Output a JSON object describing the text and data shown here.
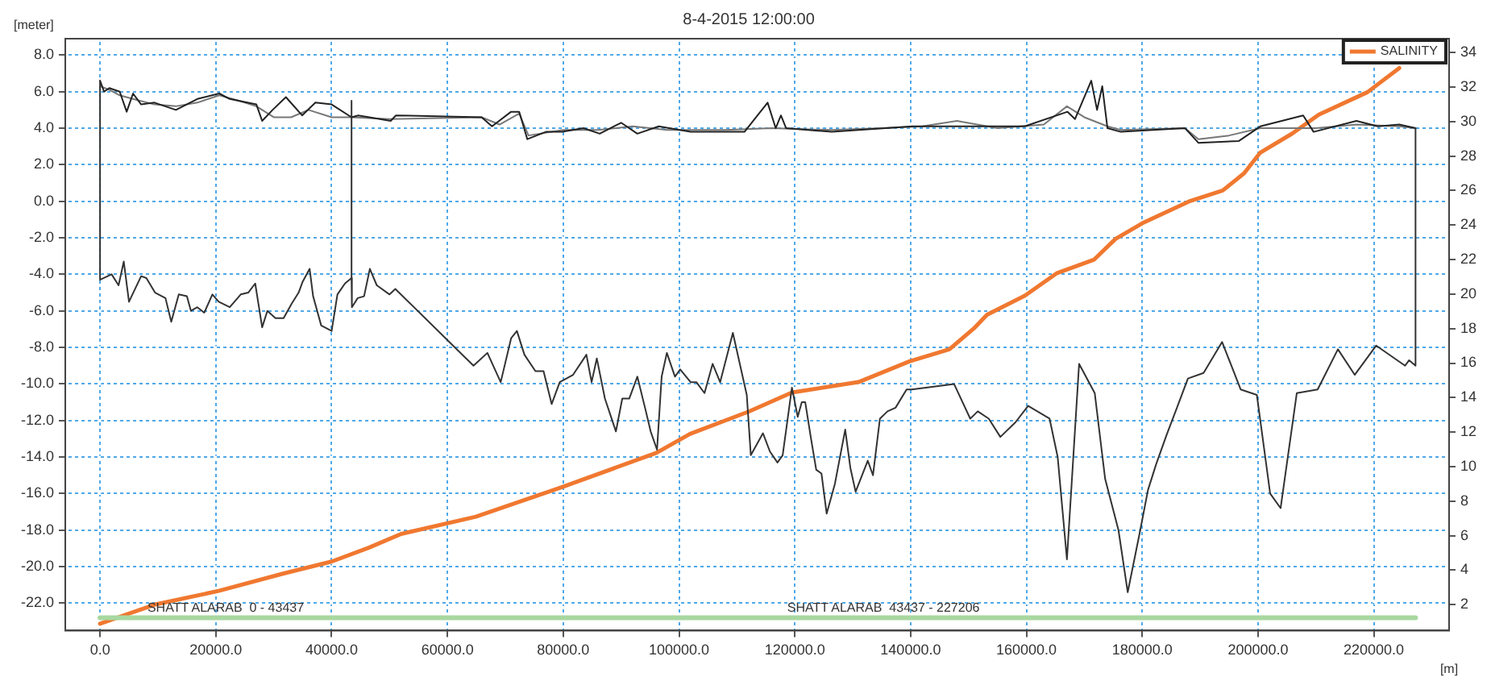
{
  "chart_data": {
    "type": "line",
    "title": "8-4-2015 12:00:00",
    "ylabel": "[meter]",
    "xlabel": "[m]",
    "xlim": [
      -6000,
      233000
    ],
    "xticks": [
      {
        "value": 0,
        "label": "0.0"
      },
      {
        "value": 20000,
        "label": "20000.0"
      },
      {
        "value": 40000,
        "label": "40000.0"
      },
      {
        "value": 60000,
        "label": "60000.0"
      },
      {
        "value": 80000,
        "label": "80000.0"
      },
      {
        "value": 100000,
        "label": "100000.0"
      },
      {
        "value": 120000,
        "label": "120000.0"
      },
      {
        "value": 140000,
        "label": "140000.0"
      },
      {
        "value": 160000,
        "label": "160000.0"
      },
      {
        "value": 180000,
        "label": "180000.0"
      },
      {
        "value": 200000,
        "label": "200000.0"
      },
      {
        "value": 220000,
        "label": "220000.0"
      }
    ],
    "ylim": [
      -23.5,
      8.9
    ],
    "yticks": [
      {
        "value": -22,
        "label": "-22.0"
      },
      {
        "value": -20,
        "label": "-20.0"
      },
      {
        "value": -18,
        "label": "-18.0"
      },
      {
        "value": -16,
        "label": "-16.0"
      },
      {
        "value": -14,
        "label": "-14.0"
      },
      {
        "value": -12,
        "label": "-12.0"
      },
      {
        "value": -10,
        "label": "-10.0"
      },
      {
        "value": -8,
        "label": "-8.0"
      },
      {
        "value": -6,
        "label": "-6.0"
      },
      {
        "value": -4,
        "label": "-4.0"
      },
      {
        "value": -2,
        "label": "-2.0"
      },
      {
        "value": 0,
        "label": "0.0"
      },
      {
        "value": 2,
        "label": "2.0"
      },
      {
        "value": 4,
        "label": "4.0"
      },
      {
        "value": 6,
        "label": "6.0"
      },
      {
        "value": 8,
        "label": "8.0"
      }
    ],
    "y2lim": [
      0.5,
      34.8
    ],
    "y2ticks": [
      2,
      4,
      6,
      8,
      10,
      12,
      14,
      16,
      18,
      20,
      22,
      24,
      26,
      28,
      30,
      32,
      34
    ],
    "grid": true,
    "legend": "top right",
    "marker": "none",
    "line_style": "solid",
    "annotations": [
      {
        "text": "SHATT ALARAB  0 - 43437",
        "x": 21700,
        "y": -22.8
      },
      {
        "text": "SHATT ALARAB  43437 - 227206",
        "x": 135300,
        "y": -22.8
      }
    ],
    "series": [
      {
        "color": "#a8d8a0",
        "x": [
          0,
          43437,
          227206
        ],
        "values": [
          -22.8,
          -22.8,
          -22.8
        ]
      },
      {
        "color": "#333333",
        "x": [
          0,
          0,
          2000,
          3200,
          4100,
          5000,
          7100,
          8000,
          9500,
          11300,
          12300,
          13600,
          15000,
          15700,
          16800,
          18000,
          19400,
          20500,
          22400,
          24300,
          25600,
          26800,
          28000,
          28900,
          30300,
          31700,
          33100,
          34300,
          35000,
          36200,
          36800,
          38200,
          40000,
          41000,
          42300,
          43437,
          43437
        ],
        "values": [
          6.6,
          -4.3,
          -4.0,
          -4.6,
          -3.3,
          -5.5,
          -4.1,
          -4.2,
          -5.0,
          -5.3,
          -6.6,
          -5.1,
          -5.2,
          -6.0,
          -5.8,
          -6.1,
          -5.1,
          -5.5,
          -5.8,
          -5.1,
          -5.0,
          -4.5,
          -6.9,
          -6.0,
          -6.4,
          -6.4,
          -5.6,
          -5.0,
          -4.4,
          -3.7,
          -5.2,
          -6.8,
          -7.1,
          -5.1,
          -4.5,
          -4.2,
          5.5
        ]
      },
      {
        "color": "#333333",
        "x": [
          43437,
          43500,
          44500,
          45600,
          46600,
          47800,
          50000,
          51000,
          64500,
          66900,
          69200,
          71000,
          72000,
          73300,
          75200,
          76600,
          78000,
          79400,
          81700,
          84000,
          84900,
          85800,
          87200,
          89100,
          90200,
          91400,
          92800,
          94200,
          95100,
          96200,
          97000,
          97900,
          99300,
          100200,
          102000,
          103000,
          104400,
          105800,
          107100,
          109300,
          111700,
          112400,
          114500,
          115700,
          117000,
          117900,
          119500,
          120500,
          121200,
          121800,
          122800,
          123700,
          124600,
          125500,
          126900,
          128700,
          129600,
          130500,
          132600,
          133500,
          134700,
          136000,
          137400,
          139300,
          140200,
          147500,
          150300,
          151600,
          153500,
          155500,
          158100,
          160300,
          164000,
          165400,
          167000,
          169100,
          171800,
          173600,
          175900,
          177500,
          179600,
          181000,
          182400,
          184200,
          186000,
          187900,
          190600,
          193800,
          197000,
          199800,
          202100,
          203900,
          206700,
          210300,
          213800,
          216700,
          220400,
          225400,
          226100,
          227206,
          227206
        ],
        "values": [
          -4.2,
          -5.8,
          -5.3,
          -5.2,
          -3.7,
          -4.6,
          -5.1,
          -4.8,
          -9.0,
          -8.3,
          -9.9,
          -7.5,
          -7.1,
          -8.4,
          -9.3,
          -9.3,
          -11.1,
          -9.9,
          -9.5,
          -8.4,
          -9.9,
          -8.6,
          -10.8,
          -12.6,
          -10.8,
          -10.8,
          -9.6,
          -11.4,
          -12.6,
          -13.6,
          -9.6,
          -8.3,
          -9.6,
          -9.2,
          -9.9,
          -9.9,
          -10.5,
          -8.9,
          -9.9,
          -7.2,
          -10.6,
          -13.9,
          -12.7,
          -13.7,
          -14.3,
          -13.9,
          -10.2,
          -11.8,
          -11.0,
          -11.0,
          -13.0,
          -14.7,
          -14.9,
          -17.1,
          -15.5,
          -12.5,
          -14.6,
          -15.9,
          -14.2,
          -15.0,
          -11.9,
          -11.5,
          -11.3,
          -10.3,
          -10.3,
          -10.0,
          -11.9,
          -11.5,
          -11.9,
          -12.9,
          -12.1,
          -11.2,
          -11.9,
          -14.0,
          -19.6,
          -8.9,
          -10.5,
          -15.2,
          -18.0,
          -21.4,
          -18.1,
          -15.8,
          -14.4,
          -12.8,
          -11.3,
          -9.7,
          -9.4,
          -7.7,
          -10.3,
          -10.6,
          -16.0,
          -16.8,
          -10.5,
          -10.3,
          -8.1,
          -9.5,
          -7.9,
          -9.0,
          -8.7,
          -9.0,
          4.0
        ]
      },
      {
        "color": "#222222",
        "x": [
          0,
          700,
          1600,
          3400,
          4600,
          5700,
          7100,
          9400,
          13100,
          16800,
          20600,
          22400,
          27000,
          28000,
          29800,
          32100,
          34900,
          37200,
          40000,
          43437,
          44600,
          46500,
          50200,
          51100,
          65900,
          67700,
          71000,
          72400,
          73800,
          77000,
          79800,
          83500,
          86300,
          90000,
          92800,
          96500,
          98300,
          102000,
          111300,
          115300,
          116700,
          117600,
          118500,
          126400,
          140300,
          151400,
          159700,
          167100,
          168400,
          171200,
          172200,
          173100,
          174000,
          176300,
          187400,
          189700,
          196700,
          200400,
          207800,
          209600,
          217000,
          220700,
          224400,
          227206
        ],
        "values": [
          6.6,
          6.0,
          6.2,
          6.0,
          4.9,
          5.9,
          5.3,
          5.4,
          5.0,
          5.6,
          5.9,
          5.6,
          5.3,
          4.4,
          5.0,
          5.7,
          4.7,
          5.4,
          5.3,
          4.6,
          4.7,
          4.6,
          4.4,
          4.7,
          4.6,
          4.1,
          4.9,
          4.9,
          3.4,
          3.8,
          3.8,
          4.0,
          3.7,
          4.3,
          3.7,
          4.1,
          4.0,
          3.8,
          3.8,
          5.4,
          4.0,
          4.7,
          4.0,
          3.8,
          4.1,
          4.1,
          4.1,
          4.9,
          4.5,
          6.6,
          5.0,
          6.3,
          4.0,
          3.8,
          4.0,
          3.2,
          3.3,
          4.1,
          4.7,
          3.8,
          4.4,
          4.1,
          4.2,
          4.0
        ]
      },
      {
        "color": "#777777",
        "x": [
          0,
          1600,
          3400,
          5700,
          9400,
          13100,
          16800,
          20600,
          24000,
          27000,
          30000,
          33000,
          36000,
          40000,
          43437,
          50000,
          65900,
          69000,
          72400,
          74000,
          80000,
          86000,
          92000,
          98000,
          108000,
          116000,
          126400,
          135000,
          142000,
          148000,
          155000,
          163000,
          167000,
          170000,
          174000,
          176300,
          187400,
          189700,
          195000,
          200400,
          210000,
          217000,
          224400,
          227206
        ],
        "values": [
          6.3,
          6.1,
          5.8,
          5.6,
          5.3,
          5.2,
          5.4,
          5.8,
          5.5,
          5.2,
          4.6,
          4.6,
          5.0,
          4.6,
          4.6,
          4.5,
          4.6,
          4.2,
          4.8,
          3.6,
          3.9,
          3.9,
          4.1,
          3.9,
          3.9,
          4.0,
          3.9,
          4.0,
          4.1,
          4.4,
          4.0,
          4.2,
          5.2,
          4.6,
          4.1,
          3.9,
          4.0,
          3.4,
          3.6,
          4.0,
          4.0,
          4.2,
          4.1,
          4.0
        ]
      },
      {
        "name": "SALINITY",
        "color": "#f07830",
        "axis": "y2",
        "x": [
          0,
          9400,
          20500,
          31600,
          40000,
          46400,
          52000,
          64900,
          79700,
          96100,
          101900,
          112100,
          119500,
          131000,
          139800,
          146700,
          150900,
          153200,
          159700,
          165200,
          171700,
          175400,
          180000,
          188300,
          193900,
          197600,
          200400,
          205900,
          210500,
          218900,
          224400
        ],
        "values": [
          0.9,
          2.0,
          2.8,
          3.8,
          4.5,
          5.3,
          6.1,
          7.1,
          8.8,
          10.8,
          11.9,
          13.2,
          14.3,
          14.9,
          16.1,
          16.8,
          18.0,
          18.8,
          19.9,
          21.2,
          22.0,
          23.2,
          24.1,
          25.4,
          26.0,
          27.0,
          28.2,
          29.3,
          30.4,
          31.7,
          33.1
        ]
      }
    ]
  }
}
